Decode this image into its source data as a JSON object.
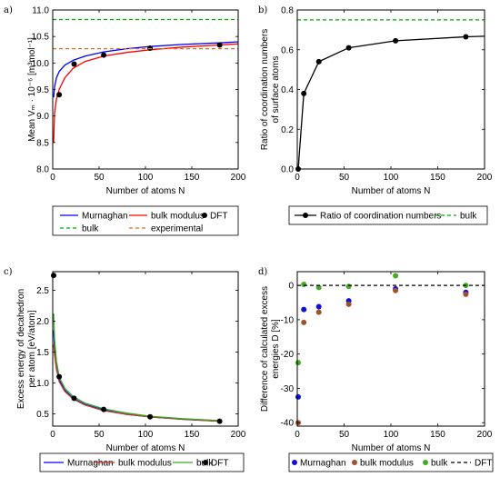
{
  "chart_data": [
    {
      "id": "a",
      "type": "line",
      "panel_label": "a)",
      "xlabel": "Number of atoms N",
      "ylabel": "Mean Vₘ · 10⁻⁶ [m³mol⁻¹]",
      "xlim": [
        0,
        200
      ],
      "ylim": [
        8.0,
        11.0
      ],
      "xticks": [
        0,
        50,
        100,
        150,
        200
      ],
      "yticks": [
        8.0,
        8.5,
        9.0,
        9.5,
        10.0,
        10.5,
        11.0
      ],
      "grid": false,
      "legend_position": "below",
      "series": [
        {
          "name": "Murnaghan",
          "color": "#0000ff",
          "style": "line",
          "x": [
            1,
            2,
            4,
            7,
            13,
            22,
            35,
            55,
            80,
            105,
            140,
            180,
            200
          ],
          "y": [
            9.35,
            9.55,
            9.72,
            9.84,
            9.96,
            10.05,
            10.13,
            10.21,
            10.27,
            10.31,
            10.35,
            10.38,
            10.4
          ]
        },
        {
          "name": "bulk modulus",
          "color": "#ff0000",
          "style": "line",
          "x": [
            1,
            2,
            4,
            7,
            13,
            22,
            35,
            55,
            80,
            105,
            140,
            180,
            200
          ],
          "y": [
            8.5,
            9.05,
            9.32,
            9.5,
            9.72,
            9.9,
            10.03,
            10.13,
            10.2,
            10.25,
            10.3,
            10.34,
            10.36
          ]
        },
        {
          "name": "DFT",
          "color": "#000000",
          "style": "markers",
          "x": [
            7,
            23,
            55,
            105,
            180
          ],
          "y": [
            9.4,
            9.98,
            10.15,
            10.28,
            10.34
          ]
        },
        {
          "name": "bulk",
          "color": "#00aa00",
          "style": "dashed",
          "x": [
            0,
            200
          ],
          "y": [
            10.82,
            10.82
          ]
        },
        {
          "name": "experimental",
          "color": "#e07020",
          "style": "dashed",
          "x": [
            0,
            200
          ],
          "y": [
            10.27,
            10.27
          ]
        }
      ]
    },
    {
      "id": "b",
      "type": "line",
      "panel_label": "b)",
      "xlabel": "Number of atoms N",
      "ylabel_lines": [
        "Ratio of coordination numbers",
        "of surface atoms"
      ],
      "xlim": [
        0,
        200
      ],
      "ylim": [
        0,
        0.8
      ],
      "xticks": [
        0,
        50,
        100,
        150,
        200
      ],
      "yticks": [
        0,
        0.2,
        0.4,
        0.6,
        0.8
      ],
      "grid": false,
      "legend_position": "below",
      "series": [
        {
          "name": "Ratio of coordination numbers",
          "color": "#000000",
          "style": "line-markers",
          "x": [
            1,
            7,
            23,
            55,
            105,
            180,
            200
          ],
          "y": [
            0.0,
            0.38,
            0.54,
            0.61,
            0.645,
            0.665,
            0.668
          ],
          "markers_x": [
            1,
            7,
            23,
            55,
            105,
            180
          ],
          "markers_y": [
            0.0,
            0.38,
            0.54,
            0.61,
            0.645,
            0.665
          ]
        },
        {
          "name": "bulk",
          "color": "#00aa00",
          "style": "dashed",
          "x": [
            0,
            200
          ],
          "y": [
            0.75,
            0.75
          ]
        }
      ]
    },
    {
      "id": "c",
      "type": "line",
      "panel_label": "c)",
      "xlabel": "Number of atoms N",
      "ylabel_lines": [
        "Excess energy of decahedron",
        "per atom [eV/atom]"
      ],
      "xlim": [
        0,
        200
      ],
      "ylim": [
        0.3,
        2.8
      ],
      "xticks": [
        0,
        50,
        100,
        150,
        200
      ],
      "yticks": [
        0.5,
        1.0,
        1.5,
        2.0,
        2.5
      ],
      "grid": false,
      "legend_position": "below",
      "series": [
        {
          "name": "Murnaghan",
          "color": "#0000ff",
          "style": "line",
          "x": [
            1,
            2,
            4,
            7,
            13,
            22,
            35,
            55,
            80,
            105,
            140,
            180
          ],
          "y": [
            1.85,
            1.55,
            1.28,
            1.05,
            0.88,
            0.75,
            0.65,
            0.56,
            0.49,
            0.45,
            0.41,
            0.38
          ]
        },
        {
          "name": "bulk modulus",
          "color": "#c0392b",
          "style": "line",
          "x": [
            1,
            2,
            4,
            7,
            13,
            22,
            35,
            55,
            80,
            105,
            140,
            180
          ],
          "y": [
            1.62,
            1.45,
            1.22,
            1.02,
            0.86,
            0.74,
            0.64,
            0.55,
            0.49,
            0.45,
            0.41,
            0.38
          ]
        },
        {
          "name": "bulk",
          "color": "#33aa22",
          "style": "line",
          "x": [
            1,
            2,
            4,
            7,
            13,
            22,
            35,
            55,
            80,
            105,
            140,
            180
          ],
          "y": [
            2.12,
            1.7,
            1.35,
            1.1,
            0.91,
            0.78,
            0.67,
            0.58,
            0.51,
            0.46,
            0.42,
            0.39
          ]
        },
        {
          "name": "DFT",
          "color": "#000000",
          "style": "markers",
          "x": [
            1,
            7,
            23,
            55,
            105,
            180
          ],
          "y": [
            2.74,
            1.1,
            0.75,
            0.57,
            0.45,
            0.38
          ]
        }
      ]
    },
    {
      "id": "d",
      "type": "scatter",
      "panel_label": "d)",
      "xlabel": "Number of atoms N",
      "ylabel_lines": [
        "Difference of calculated excess",
        "energies D [%]"
      ],
      "xlim": [
        0,
        200
      ],
      "ylim": [
        -41,
        4
      ],
      "xticks": [
        0,
        50,
        100,
        150,
        200
      ],
      "yticks": [
        -40,
        -30,
        -20,
        -10,
        0
      ],
      "grid": false,
      "legend_position": "below",
      "series": [
        {
          "name": "Murnaghan",
          "color": "#1010dd",
          "style": "markers",
          "x": [
            1,
            7,
            23,
            55,
            105,
            180
          ],
          "y": [
            -32.5,
            -7.0,
            -6.2,
            -4.5,
            -1.0,
            -2.0
          ]
        },
        {
          "name": "bulk modulus",
          "color": "#a0522d",
          "style": "markers",
          "x": [
            1,
            7,
            23,
            55,
            105,
            180
          ],
          "y": [
            -40.0,
            -10.8,
            -7.8,
            -5.5,
            -1.5,
            -2.6
          ]
        },
        {
          "name": "bulk",
          "color": "#44aa22",
          "style": "markers",
          "x": [
            1,
            7,
            23,
            55,
            105,
            180
          ],
          "y": [
            -22.5,
            0.3,
            -0.6,
            -0.3,
            2.8,
            0.0
          ]
        },
        {
          "name": "DFT",
          "color": "#000000",
          "style": "dashed",
          "x": [
            0,
            200
          ],
          "y": [
            0,
            0
          ]
        }
      ]
    }
  ]
}
